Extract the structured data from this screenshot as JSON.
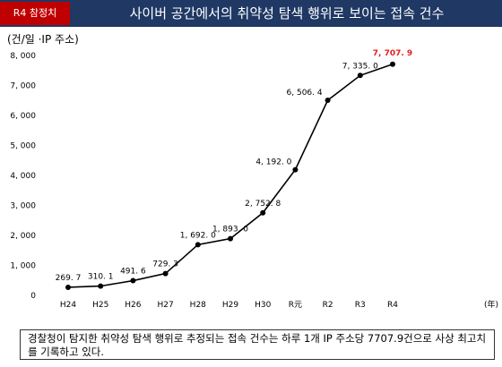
{
  "header": {
    "badge": "R4 참정치",
    "title": "사이버 공간에서의 취약성 탐색 행위로 보이는 접속 건수"
  },
  "chart_data": {
    "type": "line",
    "title": "",
    "ylabel": "(건/일 ·IP 주소)",
    "xlabel": "(年)",
    "categories": [
      "H24",
      "H25",
      "H26",
      "H27",
      "H28",
      "H29",
      "H30",
      "R元",
      "R2",
      "R3",
      "R4"
    ],
    "values": [
      269.7,
      310.1,
      491.6,
      729.3,
      1692.0,
      1893.0,
      2752.8,
      4192.0,
      6506.4,
      7335.0,
      7707.9
    ],
    "value_labels": [
      "269. 7",
      "310. 1",
      "491. 6",
      "729. 3",
      "1, 692. 0",
      "1, 893. 0",
      "2, 752. 8",
      "4, 192. 0",
      "6, 506. 4",
      "7, 335. 0",
      "7, 707. 9"
    ],
    "yticks": [
      "0",
      "1, 000",
      "2, 000",
      "3, 000",
      "4, 000",
      "5, 000",
      "6, 000",
      "7, 000",
      "8, 000"
    ],
    "ylim": [
      0,
      8000
    ],
    "grid": false,
    "line_color": "#000000",
    "highlight_color": "#e02020"
  },
  "note": "경찰청이 탐지한 취약성 탐색 행위로 추정되는 접속 건수는 하루 1개 IP 주소당 7707.9건으로 사상 최고치를 기록하고 있다."
}
